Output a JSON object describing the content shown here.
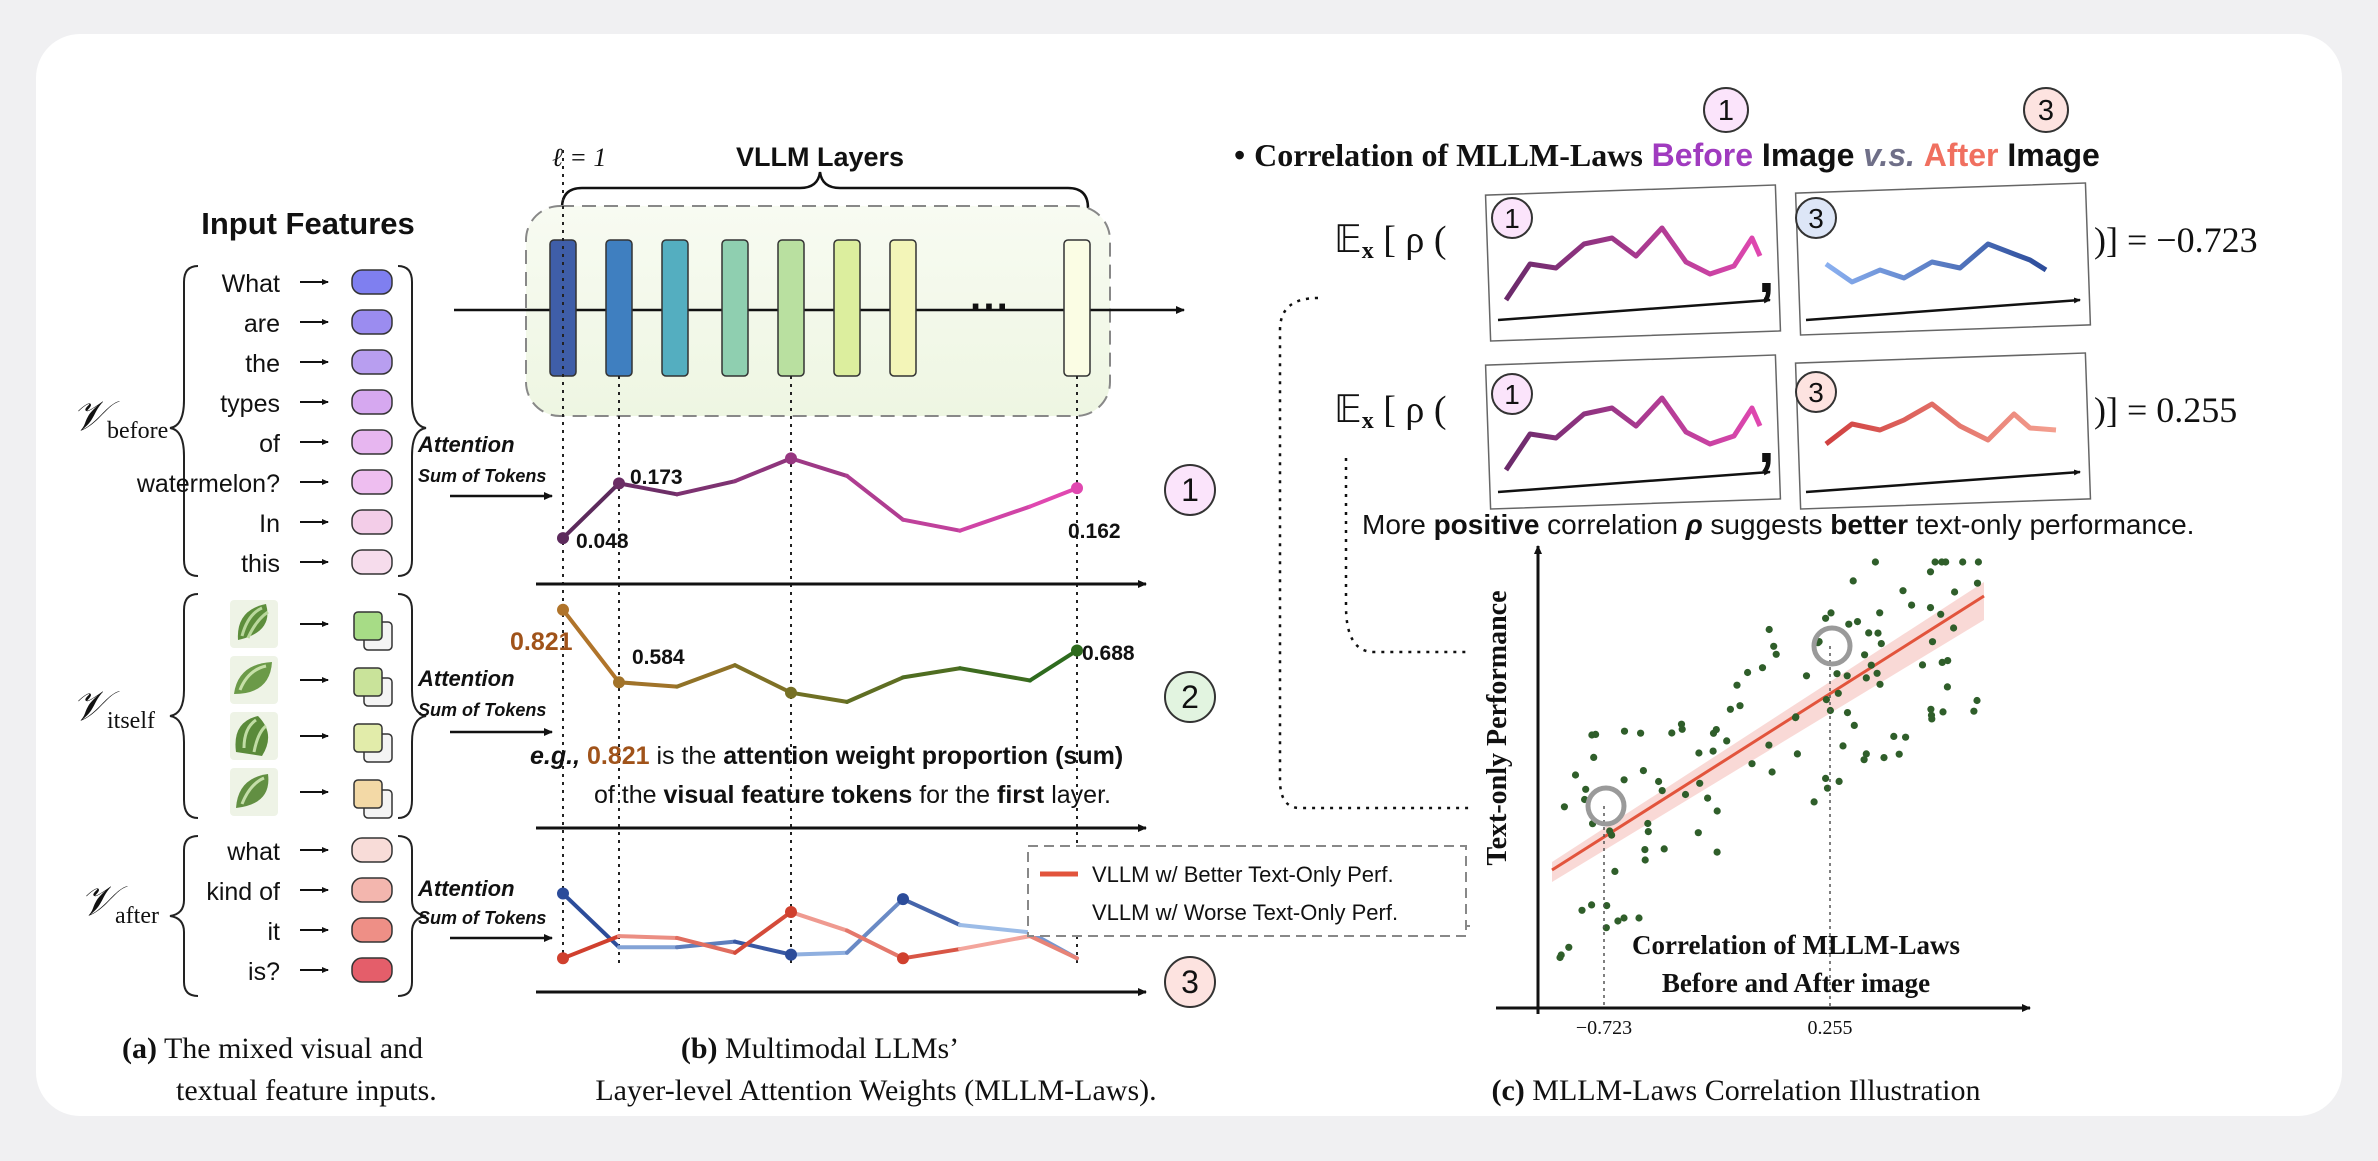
{
  "panel_a": {
    "title": "Input Features",
    "groups": [
      {
        "symbol": "𝒱",
        "sub": "before",
        "tokens": [
          "What",
          "are",
          "the",
          "types",
          "of",
          "watermelon?",
          "In",
          "this"
        ]
      },
      {
        "symbol": "𝒱",
        "sub": "itself",
        "tokens": []
      },
      {
        "symbol": "𝒱",
        "sub": "after",
        "tokens": [
          "what",
          "kind of",
          "it",
          "is?"
        ]
      }
    ],
    "attention_label": "Attention",
    "attention_sublabel": "Sum of Tokens",
    "caption_bold": "(a)",
    "caption_line1": "The mixed visual and",
    "caption_line2": "textual feature inputs."
  },
  "panel_b": {
    "layer_start": "ℓ = 1",
    "layers_title": "VLLM Layers",
    "ellipsis": "···",
    "curve1": {
      "marker": "1",
      "labels": [
        "0.048",
        "0.173",
        "0.162"
      ],
      "values": [
        0.048,
        0.173,
        0.148,
        0.178,
        0.23,
        0.19,
        0.09,
        0.065,
        0.12,
        0.162
      ]
    },
    "curve2": {
      "marker": "2",
      "labels": [
        "0.821",
        "0.584",
        "0.688"
      ],
      "values": [
        0.821,
        0.584,
        0.57,
        0.64,
        0.55,
        0.52,
        0.6,
        0.63,
        0.59,
        0.688
      ]
    },
    "curve3": {
      "marker": "3",
      "better": [
        0.3,
        0.42,
        0.41,
        0.33,
        0.55,
        0.45,
        0.3,
        0.35,
        0.42,
        0.3
      ],
      "worse": [
        0.65,
        0.36,
        0.36,
        0.39,
        0.32,
        0.33,
        0.62,
        0.48,
        0.44,
        0.3
      ]
    },
    "legend_better": "VLLM w/ Better Text-Only Perf.",
    "legend_worse": "VLLM w/ Worse Text-Only Perf.",
    "example_eg": "e.g.,",
    "example_value": "0.821",
    "example_text1": "is the",
    "example_bold1": "attention weight proportion",
    "example_paren": "(sum)",
    "example_text2": "of the",
    "example_bold2": "visual feature tokens",
    "example_text3": "for the",
    "example_bold3": "first",
    "example_text4": "layer.",
    "caption_bold": "(b)",
    "caption_line1": "Multimodal LLMs’",
    "caption_line2": "Layer-level Attention Weights (MLLM-Laws)."
  },
  "panel_c": {
    "bullet": "•",
    "heading_prefix": "Correlation of MLLM-Laws",
    "heading_before": "Before",
    "heading_image1": "Image",
    "heading_vs": "v.s.",
    "heading_after": "After",
    "heading_image2": "Image",
    "marker1": "1",
    "marker3": "3",
    "expectation": "𝔼",
    "expectation_sub": "x",
    "rho_open": "[ ρ (",
    "comma": ",",
    "eq1_result": ")] = −0.723",
    "eq2_result": ")] = 0.255",
    "note_text1": "More",
    "note_bold1": "positive",
    "note_text2": "correlation",
    "note_rho": "ρ",
    "note_text3": "suggests",
    "note_bold2": "better",
    "note_text4": "text-only performance.",
    "y_axis_label": "Text-only Performance",
    "box_line1": "Correlation of MLLM-Laws",
    "box_line2": "Before and After image",
    "xtick1": "−0.723",
    "xtick2": "0.255",
    "caption_bold": "(c)",
    "caption_text": "MLLM-Laws Correlation Illustration"
  },
  "colors": {
    "before": "#7a2a7a",
    "before_pink": "#d63fa8",
    "after": "#f07060",
    "green_dark": "#2e6b1e",
    "green_light": "#a8d060",
    "red_line": "#e2543c",
    "blue_line": "#3a6ab8",
    "scatter": "#2f5e2a",
    "brown_value": "#a0531a"
  }
}
